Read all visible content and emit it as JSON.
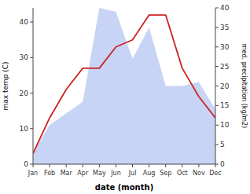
{
  "chart_data": {
    "type": "line",
    "xlabel": "date (month)",
    "ylabel": "max temp (C)",
    "y2label": "med. precipitation (kg/m2)",
    "categories": [
      "Jan",
      "Feb",
      "Mar",
      "Apr",
      "May",
      "Jun",
      "Jul",
      "Aug",
      "Sep",
      "Oct",
      "Nov",
      "Dec"
    ],
    "series": [
      {
        "type": "area",
        "axis": "y2",
        "color": "#c8d4f5",
        "values": [
          3,
          10,
          13,
          16,
          40,
          39,
          27,
          35,
          20,
          20,
          21,
          14
        ]
      },
      {
        "type": "line",
        "color": "#cc2222",
        "values": [
          3,
          13,
          21,
          27,
          27,
          33,
          35,
          42,
          42,
          27,
          19,
          13
        ]
      }
    ],
    "ylim": [
      0,
      44
    ],
    "yticks": [
      0,
      10,
      20,
      30,
      40
    ],
    "y2lim": [
      0,
      40
    ],
    "y2ticks": [
      0,
      5,
      10,
      15,
      20,
      25,
      30,
      35,
      40
    ],
    "grid": false
  }
}
